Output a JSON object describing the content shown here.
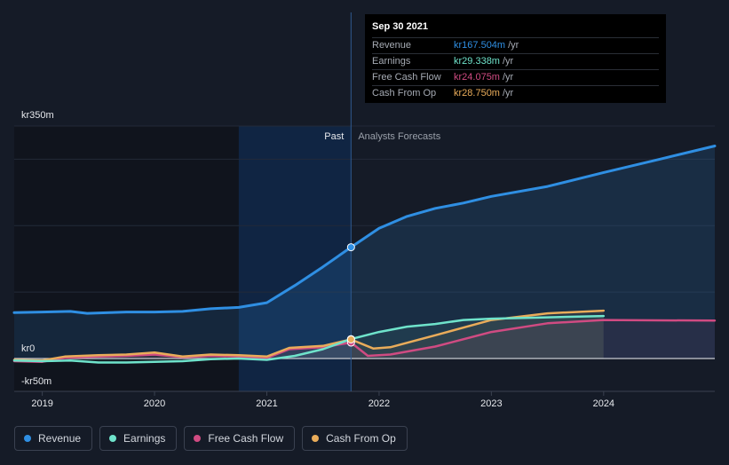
{
  "colors": {
    "revenue": "#2f8fe3",
    "earnings": "#6fe3cb",
    "free_cash_flow": "#d04b82",
    "cash_from_op": "#e9ac5a",
    "background": "#151b27",
    "past_shade": "#10141d",
    "highlight": "#0f2a4e"
  },
  "tooltip": {
    "date": "Sep 30 2021",
    "rows": [
      {
        "label": "Revenue",
        "value": "kr167.504m",
        "unit": "/yr",
        "color": "#2f8fe3"
      },
      {
        "label": "Earnings",
        "value": "kr29.338m",
        "unit": "/yr",
        "color": "#6fe3cb"
      },
      {
        "label": "Free Cash Flow",
        "value": "kr24.075m",
        "unit": "/yr",
        "color": "#d04b82"
      },
      {
        "label": "Cash From Op",
        "value": "kr28.750m",
        "unit": "/yr",
        "color": "#e9ac5a"
      }
    ]
  },
  "legend": [
    {
      "label": "Revenue",
      "color": "#2f8fe3"
    },
    {
      "label": "Earnings",
      "color": "#6fe3cb"
    },
    {
      "label": "Free Cash Flow",
      "color": "#d04b82"
    },
    {
      "label": "Cash From Op",
      "color": "#e9ac5a"
    }
  ],
  "chart_data": {
    "type": "line",
    "title": "",
    "xlabel": "",
    "ylabel": "",
    "x_ticks": [
      "2019",
      "2020",
      "2021",
      "2022",
      "2023",
      "2024"
    ],
    "y_tick_labels": [
      "kr350m",
      "kr0",
      "-kr50m"
    ],
    "ylim": [
      -50,
      350
    ],
    "xlim": [
      2018.75,
      2024.99
    ],
    "grid": true,
    "past_label": "Past",
    "forecast_label": "Analysts Forecasts",
    "divider_x": 2021.75,
    "past_region_start": 2020.75,
    "forecast_area_end": 2024.0,
    "series": [
      {
        "name": "Revenue",
        "color": "#2f8fe3",
        "points": [
          [
            2018.75,
            69
          ],
          [
            2019,
            70
          ],
          [
            2019.25,
            71
          ],
          [
            2019.4,
            68
          ],
          [
            2019.6,
            69
          ],
          [
            2019.75,
            70
          ],
          [
            2020,
            70
          ],
          [
            2020.25,
            71
          ],
          [
            2020.5,
            75
          ],
          [
            2020.75,
            77
          ],
          [
            2021,
            84
          ],
          [
            2021.25,
            110
          ],
          [
            2021.5,
            138
          ],
          [
            2021.75,
            167.5
          ],
          [
            2022,
            196
          ],
          [
            2022.25,
            214
          ],
          [
            2022.5,
            226
          ],
          [
            2022.75,
            234
          ],
          [
            2023,
            244
          ],
          [
            2023.5,
            259
          ],
          [
            2024,
            280
          ],
          [
            2024.5,
            300
          ],
          [
            2024.99,
            320
          ]
        ]
      },
      {
        "name": "Earnings",
        "color": "#6fe3cb",
        "points": [
          [
            2018.75,
            -3
          ],
          [
            2019,
            -4
          ],
          [
            2019.25,
            -3
          ],
          [
            2019.5,
            -6
          ],
          [
            2019.75,
            -6
          ],
          [
            2020,
            -5
          ],
          [
            2020.25,
            -4
          ],
          [
            2020.5,
            -1
          ],
          [
            2020.75,
            0
          ],
          [
            2021,
            -2
          ],
          [
            2021.25,
            4
          ],
          [
            2021.5,
            14
          ],
          [
            2021.75,
            29.3
          ],
          [
            2022,
            40
          ],
          [
            2022.25,
            48
          ],
          [
            2022.5,
            52
          ],
          [
            2022.75,
            58
          ],
          [
            2023,
            60
          ],
          [
            2023.5,
            62
          ],
          [
            2024,
            64
          ]
        ]
      },
      {
        "name": "Free Cash Flow",
        "color": "#d04b82",
        "points": [
          [
            2018.75,
            -4
          ],
          [
            2019,
            -5
          ],
          [
            2019.2,
            1
          ],
          [
            2019.5,
            3
          ],
          [
            2019.75,
            4
          ],
          [
            2020,
            6
          ],
          [
            2020.25,
            2
          ],
          [
            2020.5,
            4
          ],
          [
            2020.75,
            3
          ],
          [
            2021,
            1
          ],
          [
            2021.2,
            14
          ],
          [
            2021.5,
            17
          ],
          [
            2021.75,
            24
          ],
          [
            2021.9,
            4
          ],
          [
            2022.1,
            6
          ],
          [
            2022.5,
            18
          ],
          [
            2023,
            40
          ],
          [
            2023.5,
            53
          ],
          [
            2024,
            58
          ],
          [
            2024.99,
            57
          ]
        ]
      },
      {
        "name": "Cash From Op",
        "color": "#e9ac5a",
        "points": [
          [
            2018.75,
            -2
          ],
          [
            2019,
            -3
          ],
          [
            2019.2,
            3
          ],
          [
            2019.5,
            5
          ],
          [
            2019.75,
            6
          ],
          [
            2020,
            9
          ],
          [
            2020.25,
            3
          ],
          [
            2020.5,
            6
          ],
          [
            2020.75,
            5
          ],
          [
            2021,
            3
          ],
          [
            2021.2,
            16
          ],
          [
            2021.5,
            19
          ],
          [
            2021.75,
            28.75
          ],
          [
            2021.95,
            15
          ],
          [
            2022.1,
            17
          ],
          [
            2022.5,
            35
          ],
          [
            2023,
            58
          ],
          [
            2023.5,
            68
          ],
          [
            2024,
            72
          ]
        ]
      }
    ]
  }
}
